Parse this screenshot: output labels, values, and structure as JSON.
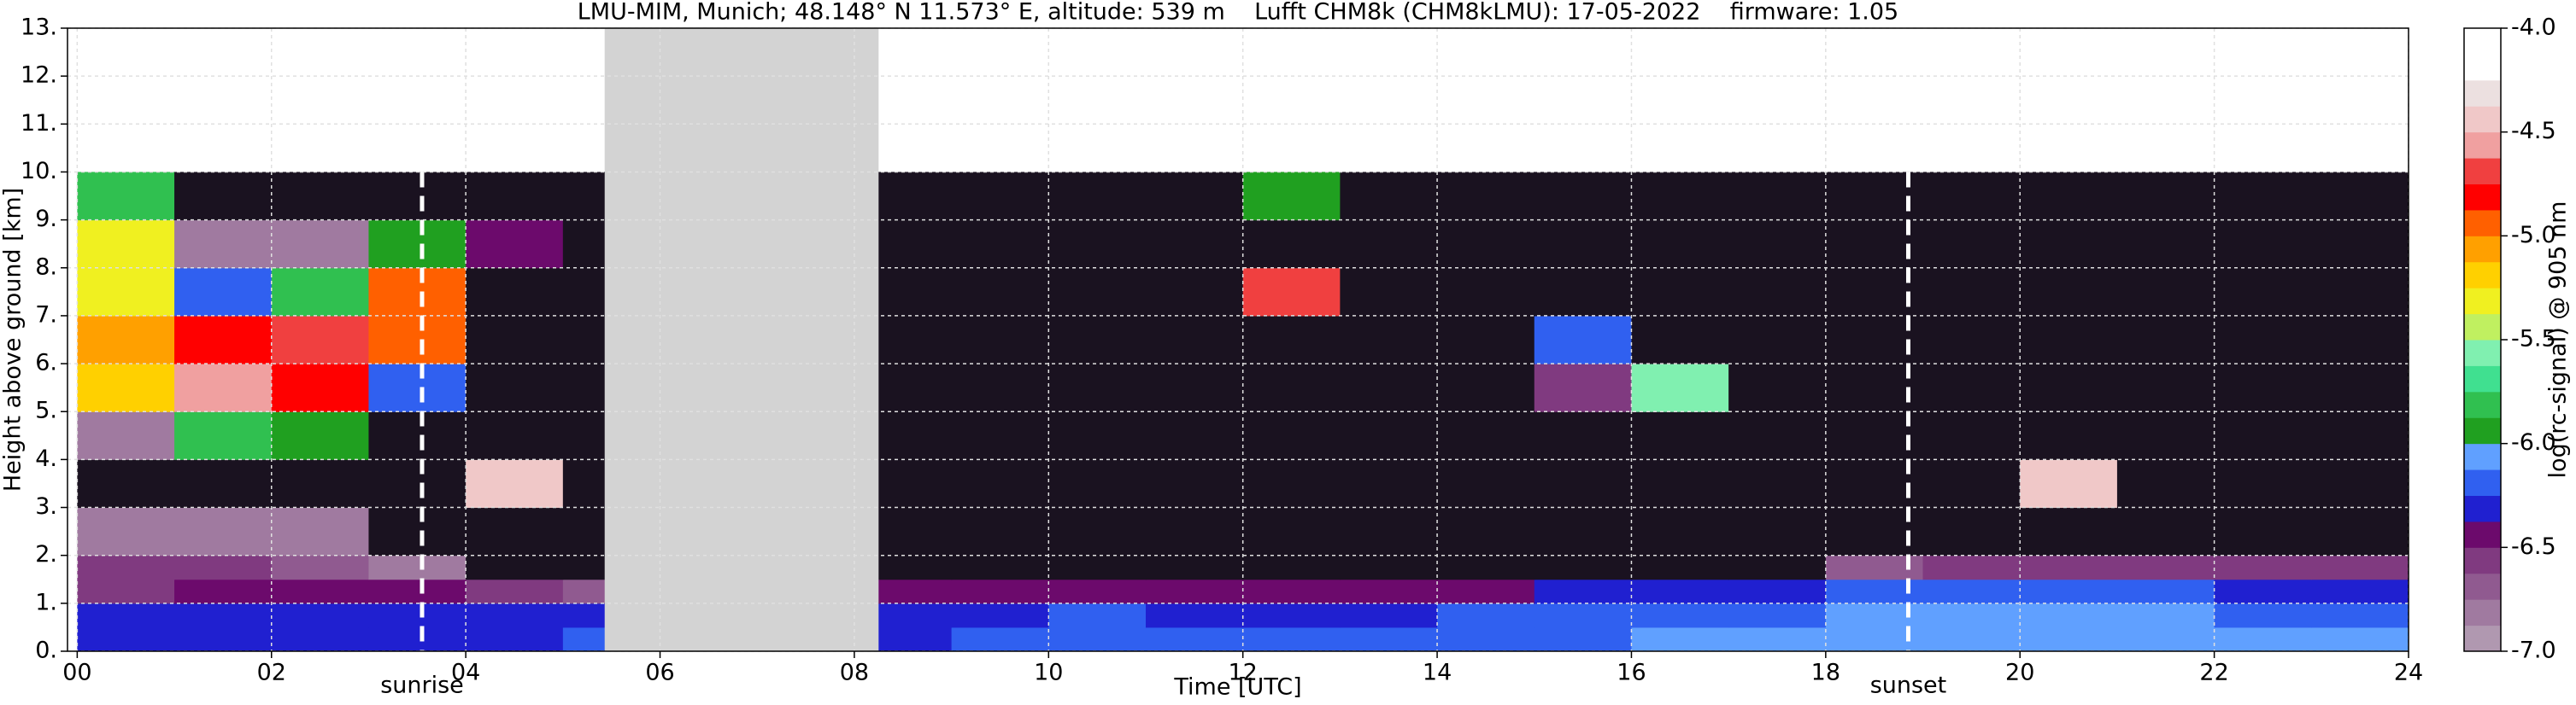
{
  "chart_data": {
    "type": "heatmap",
    "title": "LMU-MIM, Munich; 48.148° N 11.573° E, altitude: 539 m    Lufft CHM8k (CHM8kLMU): 17-05-2022    firmware: 1.05",
    "xlabel": "Time [UTC]",
    "ylabel": "Height above ground [km]",
    "colorbar_label": "log(rc-signal) @ 905 nm",
    "xlim": [
      -0.1,
      24
    ],
    "ylim": [
      0,
      13
    ],
    "xticks": [
      {
        "value": 0,
        "label": "00"
      },
      {
        "value": 2,
        "label": "02"
      },
      {
        "value": 4,
        "label": "04"
      },
      {
        "value": 6,
        "label": "06"
      },
      {
        "value": 8,
        "label": "08"
      },
      10,
      12,
      14,
      16,
      18,
      20,
      22,
      24
    ],
    "yticks": [
      {
        "value": 0,
        "label": "0."
      },
      {
        "value": 1,
        "label": "1."
      },
      {
        "value": 2,
        "label": "2."
      },
      {
        "value": 3,
        "label": "3."
      },
      {
        "value": 4,
        "label": "4."
      },
      {
        "value": 5,
        "label": "5."
      },
      {
        "value": 6,
        "label": "6."
      },
      {
        "value": 7,
        "label": "7."
      },
      {
        "value": 8,
        "label": "8."
      },
      {
        "value": 9,
        "label": "9."
      },
      {
        "value": 10,
        "label": "10."
      },
      {
        "value": 11,
        "label": "11."
      },
      {
        "value": 12,
        "label": "12."
      },
      {
        "value": 13,
        "label": "13."
      }
    ],
    "grid": true,
    "x_edges": [
      0,
      1,
      2,
      3,
      4,
      5,
      6,
      7,
      8,
      9,
      10,
      11,
      12,
      13,
      14,
      15,
      16,
      17,
      18,
      19,
      20,
      21,
      22,
      23,
      24
    ],
    "y_edges": [
      0,
      0.5,
      1,
      1.5,
      2,
      3,
      4,
      5,
      6,
      7,
      8,
      9,
      10
    ],
    "z": [
      [
        -6.3,
        -6.3,
        -6.3,
        -6.3,
        -6.3,
        -6.2,
        null,
        null,
        -6.3,
        -6.25,
        -6.25,
        -6.2,
        -6.25,
        -6.2,
        -6.2,
        -6.15,
        -6.1,
        -6.1,
        -6.1,
        -6.05,
        -6.05,
        -6.05,
        -6.05,
        -6.05
      ],
      [
        -6.35,
        -6.35,
        -6.3,
        -6.3,
        -6.35,
        -6.3,
        null,
        null,
        -6.3,
        -6.3,
        -6.25,
        -6.3,
        -6.3,
        -6.3,
        -6.25,
        -6.2,
        -6.15,
        -6.15,
        -6.1,
        -6.1,
        -6.1,
        -6.1,
        -6.15,
        -6.15
      ],
      [
        -6.55,
        -6.5,
        -6.5,
        -6.5,
        -6.6,
        -6.7,
        null,
        null,
        -6.5,
        -6.45,
        -6.45,
        -6.45,
        -6.45,
        -6.4,
        -6.4,
        -6.35,
        -6.3,
        -6.3,
        -6.2,
        -6.15,
        -6.15,
        -6.2,
        -6.35,
        -6.35
      ],
      [
        -6.6,
        -6.6,
        -6.65,
        -6.8,
        -7.1,
        -7.1,
        null,
        null,
        -7.1,
        -7.1,
        -7.1,
        -7.1,
        -7.1,
        -7.1,
        -7.1,
        -7.1,
        -7.1,
        -7.1,
        -6.7,
        -6.6,
        -6.55,
        -6.55,
        -6.6,
        -6.6
      ],
      [
        -6.8,
        -6.8,
        -6.85,
        -7.1,
        -7.1,
        -7.1,
        null,
        null,
        -7.1,
        -7.1,
        -7.1,
        -7.1,
        -7.1,
        -7.1,
        -7.1,
        -7.1,
        -7.1,
        -7.1,
        -7.1,
        -7.1,
        -7.1,
        -7.1,
        -7.1,
        -7.1
      ],
      [
        -7.1,
        -7.1,
        -7.1,
        -7.1,
        -4.5,
        -7.1,
        null,
        null,
        -7.1,
        -7.1,
        -7.1,
        -7.1,
        -7.1,
        -7.1,
        -7.1,
        -7.1,
        -7.1,
        -7.1,
        -7.1,
        -7.1,
        -4.5,
        -7.1,
        -7.1,
        -7.1
      ],
      [
        -6.8,
        -5.8,
        -6.0,
        -7.1,
        -7.1,
        -7.1,
        null,
        null,
        -7.1,
        -7.1,
        -7.1,
        -7.1,
        -7.1,
        -7.1,
        -7.1,
        -7.1,
        -7.1,
        -7.1,
        -7.1,
        -7.1,
        -7.1,
        -7.1,
        -7.1,
        -7.1
      ],
      [
        -5.2,
        -4.6,
        -4.8,
        -6.2,
        -7.1,
        -7.1,
        null,
        null,
        -7.1,
        -7.1,
        -7.1,
        -7.1,
        -7.1,
        -7.1,
        -7.1,
        -6.6,
        -5.6,
        -7.1,
        -7.1,
        -7.1,
        -7.1,
        -7.1,
        -7.1,
        -7.1
      ],
      [
        -5.1,
        -4.8,
        -4.7,
        -5.0,
        -7.1,
        -7.1,
        null,
        null,
        -7.1,
        -7.1,
        -7.1,
        -7.1,
        -7.1,
        -7.1,
        -7.1,
        -6.2,
        -7.1,
        -7.1,
        -7.1,
        -7.1,
        -7.1,
        -7.1,
        -7.1,
        -7.1
      ],
      [
        -5.3,
        -6.2,
        -5.8,
        -4.9,
        -7.1,
        -7.1,
        null,
        null,
        -7.1,
        -7.1,
        -7.1,
        -7.1,
        -4.7,
        -7.1,
        -7.1,
        -7.1,
        -7.1,
        -7.1,
        -7.1,
        -7.1,
        -7.1,
        -7.1,
        -7.1,
        -7.1
      ],
      [
        -5.3,
        -6.8,
        -6.8,
        -5.9,
        -6.4,
        -7.1,
        null,
        null,
        -7.1,
        -7.1,
        -7.1,
        -7.1,
        -7.1,
        -7.1,
        -7.1,
        -7.1,
        -7.1,
        -7.1,
        -7.1,
        -7.1,
        -7.1,
        -7.1,
        -7.1,
        -7.1
      ],
      [
        -5.8,
        -7.1,
        -7.1,
        -7.1,
        -7.1,
        -7.1,
        null,
        null,
        -7.1,
        -7.1,
        -7.1,
        -7.1,
        -6.0,
        -7.1,
        -7.1,
        -7.1,
        -7.1,
        -7.1,
        -7.1,
        -7.1,
        -7.1,
        -7.1,
        -7.1,
        -7.1
      ]
    ],
    "cbar_lim": [
      -7,
      -4
    ],
    "cbar_ticks": [
      {
        "value": -7,
        "label": "-7.0"
      },
      -6.5,
      {
        "value": -6,
        "label": "-6.0"
      },
      -5.5,
      {
        "value": -5,
        "label": "-5.0"
      },
      -4.5,
      {
        "value": -4,
        "label": "-4.0"
      }
    ],
    "colormap": [
      "#b098b0",
      "#a07aa0",
      "#905a90",
      "#803a80",
      "#6c0a6c",
      "#2020d0",
      "#3060f0",
      "#60a0ff",
      "#20a020",
      "#30c050",
      "#40e090",
      "#80f0b0",
      "#c0f060",
      "#f0f020",
      "#ffd000",
      "#ffa000",
      "#ff6000",
      "#ff0000",
      "#f04040",
      "#f0a0a0",
      "#f0c8c8",
      "#ece0e0",
      "#ffffff",
      "#ffffff"
    ],
    "under_color": "#1a1220",
    "missing_data": {
      "x": [
        5.43,
        8.25
      ],
      "color": "#d3d3d3"
    },
    "annotations": [
      {
        "x": 3.55,
        "label": "sunrise"
      },
      {
        "x": 18.85,
        "label": "sunset"
      }
    ]
  }
}
